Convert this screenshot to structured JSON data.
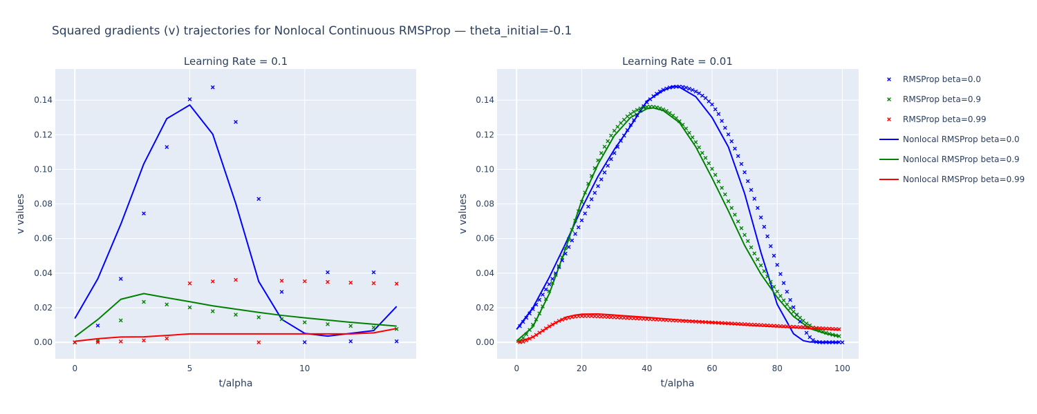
{
  "chart_data": {
    "type": "line",
    "title": "Squared gradients (v) trajectories for Nonlocal Continuous RMSProp — theta_initial=-0.1",
    "legend": {
      "placement": "right",
      "entries": [
        {
          "name": "RMSProp beta=0.0",
          "kind": "marker",
          "color": "#0000ff"
        },
        {
          "name": "RMSProp beta=0.9",
          "kind": "marker",
          "color": "#008000"
        },
        {
          "name": "RMSProp beta=0.99",
          "kind": "marker",
          "color": "#ff0000"
        },
        {
          "name": "Nonlocal RMSProp beta=0.0",
          "kind": "line",
          "color": "#0000ff"
        },
        {
          "name": "Nonlocal RMSProp beta=0.9",
          "kind": "line",
          "color": "#008000"
        },
        {
          "name": "Nonlocal RMSProp beta=0.99",
          "kind": "line",
          "color": "#ff0000"
        }
      ]
    },
    "panels": [
      {
        "subtitle": "Learning Rate = 0.1",
        "xlabel": "t/alpha",
        "ylabel": "v values",
        "xlim": [
          -0.85,
          14.85
        ],
        "ylim": [
          -0.0095,
          0.158
        ],
        "xticks": [
          0,
          5,
          10
        ],
        "yticks": [
          0,
          0.02,
          0.04,
          0.06,
          0.08,
          0.1,
          0.12,
          0.14
        ],
        "ytick_labels": [
          "0.00",
          "0.02",
          "0.04",
          "0.06",
          "0.08",
          "0.10",
          "0.12",
          "0.14"
        ],
        "grid": true,
        "marker_series": [
          {
            "name": "RMSProp beta=0.0",
            "color": "#0000ff",
            "x": [
              0,
              1,
              2,
              3,
              4,
              5,
              6,
              7,
              8,
              9,
              10,
              11,
              12,
              13,
              14
            ],
            "y": [
              0.0,
              0.0097,
              0.0367,
              0.0745,
              0.1129,
              0.1405,
              0.1474,
              0.1274,
              0.0829,
              0.0292,
              0.0001,
              0.0405,
              0.0006,
              0.0405,
              0.0006
            ]
          },
          {
            "name": "RMSProp beta=0.9",
            "color": "#008000",
            "x": [
              0,
              1,
              2,
              3,
              4,
              5,
              6,
              7,
              8,
              9,
              10,
              11,
              12,
              13,
              14
            ],
            "y": [
              0.0,
              0.001,
              0.0127,
              0.0234,
              0.0219,
              0.0202,
              0.018,
              0.016,
              0.0145,
              0.0134,
              0.0116,
              0.0105,
              0.0095,
              0.0086,
              0.0077
            ]
          },
          {
            "name": "RMSProp beta=0.99",
            "color": "#ff0000",
            "x": [
              0,
              1,
              2,
              3,
              4,
              5,
              6,
              7,
              8,
              9,
              10,
              11,
              12,
              13,
              14
            ],
            "y": [
              0.0,
              0.0001,
              0.0005,
              0.0011,
              0.0022,
              0.0341,
              0.0352,
              0.0361,
              0.0,
              0.0356,
              0.0353,
              0.0349,
              0.0345,
              0.0342,
              0.0339
            ]
          }
        ],
        "line_series": [
          {
            "name": "Nonlocal RMSProp beta=0.0",
            "color": "#0000ff",
            "x": [
              0,
              1,
              2,
              3,
              4,
              5,
              6,
              7,
              8,
              9,
              10,
              11,
              12,
              13,
              14
            ],
            "y": [
              0.0138,
              0.0368,
              0.0683,
              0.1032,
              0.1293,
              0.1372,
              0.1203,
              0.0803,
              0.0352,
              0.0133,
              0.0052,
              0.0036,
              0.0052,
              0.0068,
              0.0208
            ]
          },
          {
            "name": "Nonlocal RMSProp beta=0.9",
            "color": "#008000",
            "x": [
              0,
              1,
              2,
              3,
              4,
              5,
              6,
              7,
              8,
              9,
              10,
              11,
              12,
              13,
              14
            ],
            "y": [
              0.0032,
              0.0132,
              0.0249,
              0.0282,
              0.0258,
              0.0235,
              0.0211,
              0.0192,
              0.0173,
              0.0156,
              0.0142,
              0.0129,
              0.0116,
              0.0105,
              0.0094
            ]
          },
          {
            "name": "Nonlocal RMSProp beta=0.99",
            "color": "#ff0000",
            "x": [
              0,
              1,
              2,
              3,
              4,
              5,
              6,
              7,
              8,
              9,
              10,
              11,
              12,
              13,
              14
            ],
            "y": [
              0.0006,
              0.0021,
              0.0031,
              0.0032,
              0.004,
              0.0049,
              0.0049,
              0.0049,
              0.0049,
              0.0049,
              0.0049,
              0.0049,
              0.0049,
              0.0055,
              0.008
            ]
          }
        ]
      },
      {
        "subtitle": "Learning Rate = 0.01",
        "xlabel": "t/alpha",
        "ylabel": "v values",
        "xlim": [
          -6,
          105
        ],
        "ylim": [
          -0.0095,
          0.158
        ],
        "xticks": [
          0,
          20,
          40,
          60,
          80,
          100
        ],
        "yticks": [
          0,
          0.02,
          0.04,
          0.06,
          0.08,
          0.1,
          0.12,
          0.14
        ],
        "ytick_labels": [
          "0.00",
          "0.02",
          "0.04",
          "0.06",
          "0.08",
          "0.10",
          "0.12",
          "0.14"
        ],
        "grid": true,
        "x_range": [
          0,
          99
        ],
        "marker_series": [
          {
            "name": "RMSProp beta=0.0",
            "color": "#0000ff",
            "x_start": 1,
            "x_step": 1,
            "y": [
              0.0094,
              0.0118,
              0.0142,
              0.0167,
              0.0192,
              0.0218,
              0.0246,
              0.0276,
              0.0306,
              0.0336,
              0.0367,
              0.0399,
              0.0435,
              0.0474,
              0.0513,
              0.0551,
              0.0589,
              0.0627,
              0.0665,
              0.0705,
              0.0745,
              0.0785,
              0.0827,
              0.0864,
              0.0903,
              0.0942,
              0.0982,
              0.1021,
              0.1059,
              0.1094,
              0.113,
              0.1165,
              0.1195,
              0.1227,
              0.1257,
              0.1285,
              0.1313,
              0.1339,
              0.1365,
              0.1387,
              0.1405,
              0.1423,
              0.1437,
              0.145,
              0.146,
              0.1467,
              0.1473,
              0.1476,
              0.1478,
              0.1478,
              0.1476,
              0.1472,
              0.1466,
              0.1459,
              0.145,
              0.144,
              0.1426,
              0.1412,
              0.1393,
              0.1375,
              0.1347,
              0.132,
              0.128,
              0.124,
              0.1202,
              0.1162,
              0.112,
              0.1077,
              0.1031,
              0.0983,
              0.0932,
              0.0881,
              0.083,
              0.0777,
              0.0722,
              0.0668,
              0.0613,
              0.0556,
              0.0501,
              0.0448,
              0.0395,
              0.0343,
              0.0293,
              0.0245,
              0.0203,
              0.016,
              0.012,
              0.0088,
              0.0055,
              0.003,
              0.0013,
              0.0003,
              0.0001,
              0.0,
              0.0001,
              0.0,
              0.0001,
              0.0,
              0.0001,
              0.0
            ]
          },
          {
            "name": "RMSProp beta=0.9",
            "color": "#008000",
            "x_start": 1,
            "x_step": 1,
            "y": [
              0.0009,
              0.0025,
              0.0047,
              0.0072,
              0.0102,
              0.0133,
              0.0167,
              0.0208,
              0.0251,
              0.0296,
              0.0344,
              0.039,
              0.0441,
              0.0491,
              0.0544,
              0.0596,
              0.065,
              0.0703,
              0.0758,
              0.0812,
              0.0866,
              0.0917,
              0.0962,
              0.1007,
              0.1052,
              0.1094,
              0.1131,
              0.1163,
              0.1195,
              0.1223,
              0.1246,
              0.1268,
              0.1287,
              0.1306,
              0.132,
              0.1333,
              0.1343,
              0.1352,
              0.1357,
              0.1361,
              0.1362,
              0.1361,
              0.1358,
              0.1353,
              0.1346,
              0.1337,
              0.1325,
              0.1311,
              0.1296,
              0.1278,
              0.1258,
              0.1236,
              0.1211,
              0.1185,
              0.1157,
              0.1127,
              0.1095,
              0.1066,
              0.1035,
              0.1003,
              0.0968,
              0.093,
              0.0893,
              0.0855,
              0.0816,
              0.0777,
              0.0738,
              0.0699,
              0.066,
              0.0621,
              0.0586,
              0.0549,
              0.0514,
              0.048,
              0.0445,
              0.0412,
              0.0381,
              0.035,
              0.0321,
              0.0294,
              0.0268,
              0.0243,
              0.0219,
              0.0197,
              0.0177,
              0.0158,
              0.0142,
              0.0125,
              0.0109,
              0.0098,
              0.0086,
              0.0076,
              0.0068,
              0.0062,
              0.0055,
              0.0049,
              0.0044,
              0.004,
              0.0036
            ]
          },
          {
            "name": "RMSProp beta=0.99",
            "color": "#ff0000",
            "x_start": 1,
            "x_step": 1,
            "y": [
              0.0001,
              0.0004,
              0.0012,
              0.0021,
              0.0031,
              0.0043,
              0.0056,
              0.0068,
              0.0081,
              0.0093,
              0.0104,
              0.0114,
              0.0124,
              0.0131,
              0.0137,
              0.0142,
              0.0146,
              0.0149,
              0.0151,
              0.0152,
              0.0152,
              0.0152,
              0.0152,
              0.0151,
              0.015,
              0.0149,
              0.0148,
              0.0147,
              0.0146,
              0.0145,
              0.0144,
              0.0143,
              0.0142,
              0.0141,
              0.014,
              0.0139,
              0.0138,
              0.0137,
              0.0136,
              0.0135,
              0.0134,
              0.0133,
              0.0132,
              0.0131,
              0.013,
              0.0129,
              0.0128,
              0.0127,
              0.0126,
              0.0125,
              0.0124,
              0.0123,
              0.0122,
              0.0121,
              0.012,
              0.0119,
              0.0118,
              0.0117,
              0.0116,
              0.0115,
              0.0114,
              0.0113,
              0.0112,
              0.0111,
              0.011,
              0.0109,
              0.0108,
              0.0107,
              0.0106,
              0.0105,
              0.0104,
              0.0103,
              0.0102,
              0.0101,
              0.01,
              0.0099,
              0.0098,
              0.0097,
              0.0096,
              0.0095,
              0.0094,
              0.0093,
              0.0092,
              0.0091,
              0.009,
              0.0089,
              0.0088,
              0.0087,
              0.0086,
              0.0085,
              0.0084,
              0.0083,
              0.0082,
              0.0081,
              0.008,
              0.0079,
              0.0078,
              0.0077,
              0.0076
            ]
          }
        ],
        "line_series": [
          {
            "name": "Nonlocal RMSProp beta=0.0",
            "color": "#0000ff",
            "x": [
              0,
              5,
              10,
              15,
              20,
              25,
              30,
              35,
              40,
              45,
              48,
              50,
              55,
              60,
              65,
              70,
              75,
              80,
              85,
              88,
              90,
              95,
              99
            ],
            "y": [
              0.0075,
              0.02,
              0.0375,
              0.057,
              0.0775,
              0.096,
              0.1115,
              0.125,
              0.1395,
              0.1455,
              0.148,
              0.1475,
              0.142,
              0.13,
              0.113,
              0.086,
              0.052,
              0.022,
              0.005,
              0.001,
              0.0002,
              0.0,
              0.0
            ]
          },
          {
            "name": "Nonlocal RMSProp beta=0.9",
            "color": "#008000",
            "x": [
              0,
              5,
              10,
              15,
              20,
              25,
              30,
              35,
              40,
              42,
              45,
              50,
              55,
              60,
              65,
              70,
              75,
              80,
              85,
              90,
              95,
              99
            ],
            "y": [
              0.0008,
              0.009,
              0.028,
              0.054,
              0.082,
              0.103,
              0.1195,
              0.13,
              0.135,
              0.1355,
              0.134,
              0.127,
              0.113,
              0.095,
              0.076,
              0.056,
              0.0395,
              0.026,
              0.015,
              0.008,
              0.005,
              0.0035
            ]
          },
          {
            "name": "Nonlocal RMSProp beta=0.99",
            "color": "#ff0000",
            "x": [
              0,
              5,
              10,
              15,
              18,
              20,
              25,
              30,
              40,
              50,
              60,
              70,
              80,
              90,
              99
            ],
            "y": [
              0.0001,
              0.003,
              0.009,
              0.0145,
              0.0158,
              0.0163,
              0.0164,
              0.0158,
              0.0145,
              0.013,
              0.0115,
              0.01,
              0.009,
              0.008,
              0.0072
            ]
          }
        ]
      }
    ]
  }
}
